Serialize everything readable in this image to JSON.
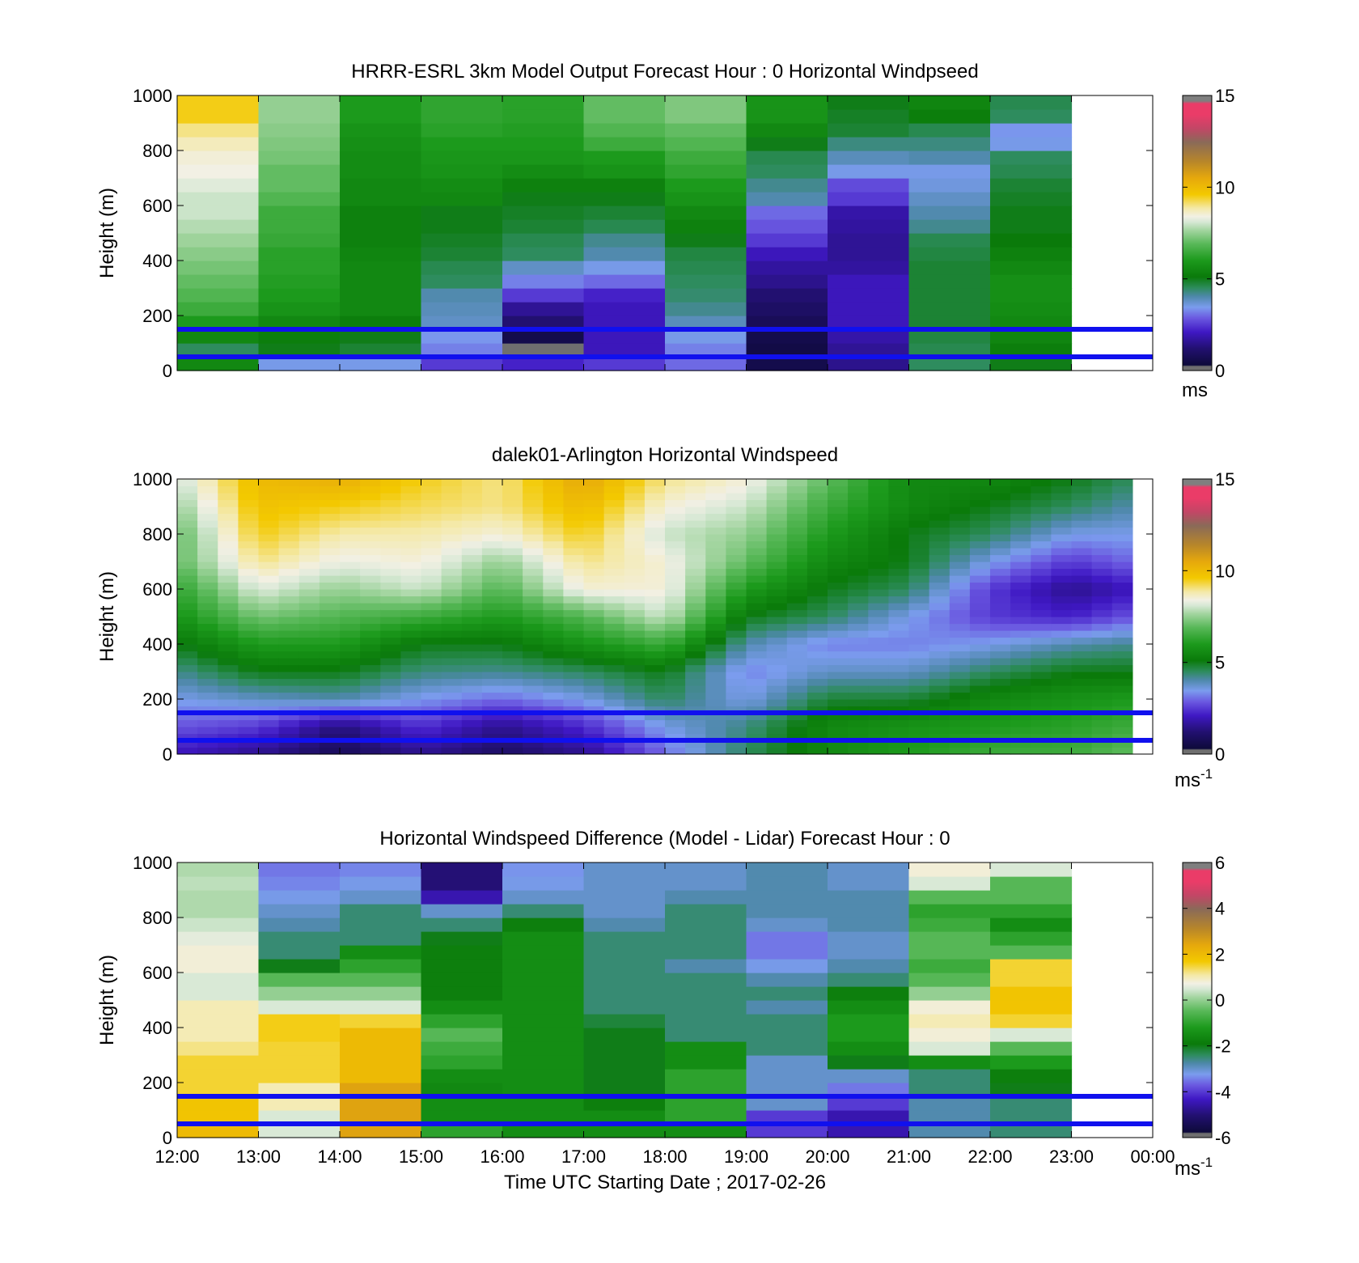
{
  "figure": {
    "xlabel": "Time UTC  Starting Date ; 2017-02-26",
    "time_ticks": [
      "12:00",
      "13:00",
      "14:00",
      "15:00",
      "16:00",
      "17:00",
      "18:00",
      "19:00",
      "20:00",
      "21:00",
      "22:00",
      "23:00",
      "00:00"
    ],
    "reference_lines": {
      "heights_m": [
        150,
        50
      ],
      "color": "#1010ee"
    }
  },
  "colors": {
    "speed_scale": [
      [
        0.0,
        "#6f6f6f"
      ],
      [
        0.015,
        "#6f6f6f"
      ],
      [
        0.02,
        "#0d0a3a"
      ],
      [
        0.08,
        "#221070"
      ],
      [
        0.14,
        "#3f18c4"
      ],
      [
        0.19,
        "#6a58e0"
      ],
      [
        0.23,
        "#7b9cee"
      ],
      [
        0.27,
        "#4d88a8"
      ],
      [
        0.3,
        "#2e8c5e"
      ],
      [
        0.34,
        "#0a7a0a"
      ],
      [
        0.4,
        "#1c9a1c"
      ],
      [
        0.46,
        "#58b858"
      ],
      [
        0.51,
        "#a3d5a0"
      ],
      [
        0.54,
        "#d7e8d5"
      ],
      [
        0.56,
        "#f2f0e4"
      ],
      [
        0.59,
        "#f4e9a8"
      ],
      [
        0.64,
        "#f3c900"
      ],
      [
        0.7,
        "#e6a80c"
      ],
      [
        0.76,
        "#b7862a"
      ],
      [
        0.83,
        "#8a6a58"
      ],
      [
        0.88,
        "#c24666"
      ],
      [
        0.93,
        "#ea3c68"
      ],
      [
        0.97,
        "#ea3c68"
      ],
      [
        0.98,
        "#7f7f7f"
      ],
      [
        1.0,
        "#7f7f7f"
      ]
    ]
  },
  "chart_data": [
    {
      "type": "heatmap",
      "title": "HRRR-ESRL 3km Model Output   Forecast Hour : 0 Horizontal Windpseed",
      "ylabel": "Height (m)",
      "xlim_hours": [
        12,
        24
      ],
      "ylim": [
        0,
        1000
      ],
      "y_ticks": [
        0,
        200,
        400,
        600,
        800,
        1000
      ],
      "colorbar": {
        "ticks": [
          0,
          5,
          10,
          15
        ],
        "range": [
          0,
          15
        ],
        "unit_label": "ms",
        "unit_sup": ""
      },
      "model_columns": [
        [
          5.5,
          4.5,
          5.5,
          6.0,
          6.5,
          6.8,
          7.0,
          7.2,
          7.4,
          7.6,
          7.8,
          8.0,
          8.0,
          8.2,
          8.4,
          8.5,
          8.7,
          9.0,
          9.5,
          9.5
        ],
        [
          3.5,
          5.0,
          5.2,
          5.5,
          5.8,
          6.0,
          6.1,
          6.2,
          6.2,
          6.4,
          6.5,
          6.5,
          6.8,
          7.0,
          7.0,
          7.2,
          7.3,
          7.4,
          7.5,
          7.5
        ],
        [
          3.5,
          4.8,
          5.0,
          5.2,
          5.5,
          5.5,
          5.5,
          5.5,
          5.4,
          5.3,
          5.3,
          5.3,
          5.5,
          5.5,
          5.6,
          5.6,
          5.7,
          5.8,
          6.0,
          6.0
        ],
        [
          2.5,
          3.2,
          3.4,
          3.8,
          3.9,
          4.0,
          4.5,
          4.6,
          4.8,
          4.9,
          5.0,
          5.0,
          5.5,
          5.6,
          5.8,
          5.9,
          6.0,
          6.2,
          6.3,
          6.3
        ],
        [
          2.2,
          0.2,
          0.6,
          1.2,
          1.6,
          2.5,
          3.2,
          3.8,
          4.5,
          4.6,
          4.8,
          4.9,
          5.0,
          5.3,
          5.6,
          5.9,
          6.0,
          6.1,
          6.2,
          6.2
        ],
        [
          2.5,
          2.0,
          2.0,
          2.0,
          2.0,
          2.2,
          3.0,
          3.5,
          4.0,
          4.2,
          4.6,
          4.8,
          5.0,
          5.3,
          5.8,
          6.0,
          6.5,
          6.8,
          7.0,
          7.0
        ],
        [
          3.0,
          3.2,
          3.5,
          3.9,
          4.2,
          4.4,
          4.5,
          4.6,
          4.7,
          5.0,
          5.3,
          5.5,
          5.8,
          6.0,
          6.3,
          6.5,
          6.8,
          7.0,
          7.3,
          7.3
        ],
        [
          0.6,
          0.5,
          0.6,
          0.8,
          1.0,
          1.2,
          1.5,
          1.7,
          2.0,
          2.5,
          2.8,
          3.0,
          4.0,
          4.2,
          4.5,
          4.6,
          5.0,
          5.5,
          5.8,
          5.8
        ],
        [
          1.5,
          1.6,
          1.8,
          2.0,
          2.0,
          2.0,
          2.0,
          1.7,
          1.6,
          1.6,
          1.7,
          1.8,
          2.5,
          2.7,
          3.5,
          3.9,
          4.3,
          4.8,
          4.9,
          5.0
        ],
        [
          4.5,
          4.6,
          4.7,
          4.8,
          4.8,
          4.8,
          4.8,
          4.8,
          4.7,
          4.6,
          4.2,
          4.0,
          3.8,
          3.6,
          3.5,
          4.0,
          4.3,
          4.6,
          5.2,
          5.4
        ],
        [
          5.0,
          5.2,
          5.4,
          5.5,
          5.6,
          5.7,
          5.7,
          5.5,
          5.3,
          5.1,
          5.0,
          5.0,
          4.9,
          4.8,
          4.6,
          4.5,
          3.5,
          3.4,
          4.5,
          4.6
        ]
      ]
    },
    {
      "type": "heatmap",
      "title": "dalek01-Arlington  Horizontal Windspeed",
      "ylabel": "Height (m)",
      "xlim_hours": [
        12,
        24
      ],
      "ylim": [
        0,
        1000
      ],
      "y_ticks": [
        0,
        200,
        400,
        600,
        800,
        1000
      ],
      "colorbar": {
        "ticks": [
          0,
          5,
          10,
          15
        ],
        "range": [
          0,
          15
        ],
        "unit_label": "ms",
        "unit_sup": "-1"
      },
      "lidar_profiles": {
        "start_hour": 12,
        "step_hours": 0.25,
        "n_columns": 47,
        "heights_m": [
          0,
          100,
          200,
          300,
          400,
          500,
          600,
          700,
          800,
          900,
          1000
        ],
        "waypoints": [
          {
            "hour": 12.0,
            "profile": [
              2.0,
              2.8,
              3.5,
              4.2,
              5.0,
              5.8,
              6.3,
              7.0,
              7.0,
              7.5,
              8.0
            ]
          },
          {
            "hour": 13.0,
            "profile": [
              1.5,
              2.5,
              3.8,
              5.0,
              6.0,
              7.2,
              8.2,
              9.0,
              9.5,
              9.8,
              10.0
            ]
          },
          {
            "hour": 14.0,
            "profile": [
              0.8,
              1.3,
              4.0,
              5.0,
              6.0,
              6.8,
              7.5,
              8.3,
              8.8,
              9.5,
              10.3
            ]
          },
          {
            "hour": 15.0,
            "profile": [
              1.5,
              2.4,
              3.4,
              4.3,
              5.0,
              6.5,
              8.0,
              8.5,
              8.8,
              9.2,
              9.5
            ]
          },
          {
            "hour": 16.0,
            "profile": [
              1.0,
              1.5,
              3.0,
              4.2,
              5.0,
              6.0,
              6.8,
              7.5,
              8.5,
              9.0,
              9.0
            ]
          },
          {
            "hour": 17.0,
            "profile": [
              1.5,
              2.3,
              3.5,
              4.5,
              5.8,
              6.8,
              8.5,
              9.0,
              9.5,
              10.0,
              10.5
            ]
          },
          {
            "hour": 18.0,
            "profile": [
              3.0,
              3.5,
              4.5,
              5.0,
              6.5,
              8.0,
              8.5,
              8.5,
              8.0,
              8.5,
              9.0
            ]
          },
          {
            "hour": 19.0,
            "profile": [
              4.5,
              4.3,
              3.5,
              3.2,
              4.0,
              5.0,
              6.0,
              7.0,
              7.5,
              8.0,
              8.5
            ]
          },
          {
            "hour": 20.0,
            "profile": [
              5.5,
              5.5,
              4.8,
              3.8,
              3.2,
              4.5,
              5.0,
              5.5,
              6.0,
              6.5,
              7.0
            ]
          },
          {
            "hour": 21.0,
            "profile": [
              6.0,
              5.8,
              4.8,
              3.8,
              3.2,
              3.5,
              4.5,
              5.0,
              5.0,
              5.5,
              5.5
            ]
          },
          {
            "hour": 22.0,
            "profile": [
              6.5,
              6.0,
              5.5,
              4.5,
              3.5,
              2.5,
              2.5,
              3.5,
              4.5,
              5.0,
              5.5
            ]
          },
          {
            "hour": 23.0,
            "profile": [
              6.5,
              6.2,
              5.8,
              5.0,
              4.0,
              2.2,
              1.5,
              2.5,
              3.5,
              4.5,
              5.0
            ]
          },
          {
            "hour": 23.75,
            "profile": [
              7.0,
              6.5,
              6.0,
              5.0,
              4.2,
              2.8,
              2.0,
              3.0,
              3.5,
              4.0,
              4.5
            ]
          }
        ]
      }
    },
    {
      "type": "heatmap",
      "title": "Horizontal Windspeed Difference (Model - Lidar) Forecast Hour : 0",
      "ylabel": "Height (m)",
      "xlim_hours": [
        12,
        24
      ],
      "ylim": [
        0,
        1000
      ],
      "y_ticks": [
        0,
        200,
        400,
        600,
        800,
        1000
      ],
      "colorbar": {
        "ticks": [
          -6,
          -4,
          -2,
          0,
          2,
          4,
          6
        ],
        "range": [
          -6,
          6
        ],
        "unit_label": "ms",
        "unit_sup": "-1"
      },
      "difference_columns": [
        [
          2.0,
          1.8,
          1.8,
          1.5,
          1.5,
          1.5,
          1.2,
          1.0,
          1.0,
          1.0,
          0.5,
          0.5,
          0.8,
          0.8,
          0.6,
          0.4,
          0.2,
          0.2,
          0.3,
          0.2
        ],
        [
          0.5,
          0.5,
          1.0,
          1.0,
          1.5,
          1.5,
          1.5,
          1.6,
          1.6,
          0.5,
          0.0,
          -0.5,
          -2.0,
          -2.5,
          -2.5,
          -2.8,
          -3.0,
          -3.2,
          -3.4,
          -3.5
        ],
        [
          2.5,
          2.5,
          2.5,
          2.5,
          2.0,
          2.0,
          2.0,
          2.0,
          1.5,
          0.5,
          0.0,
          -0.5,
          -1.0,
          -1.5,
          -2.5,
          -2.5,
          -2.5,
          -3.0,
          -3.2,
          -3.4
        ],
        [
          -1.0,
          -1.5,
          -1.5,
          -1.6,
          -1.5,
          -1.0,
          -0.8,
          -0.5,
          -1.0,
          -1.5,
          -1.8,
          -1.8,
          -1.8,
          -1.8,
          -2.0,
          -2.5,
          -3.0,
          -4.5,
          -5.0,
          -5.0
        ],
        [
          -1.5,
          -1.5,
          -1.5,
          -1.5,
          -1.5,
          -1.5,
          -1.5,
          -1.5,
          -1.5,
          -1.5,
          -1.5,
          -1.5,
          -1.5,
          -1.5,
          -1.5,
          -1.8,
          -2.5,
          -3.0,
          -3.2,
          -3.3
        ],
        [
          -1.5,
          -1.5,
          -1.8,
          -2.0,
          -2.0,
          -2.0,
          -2.0,
          -2.0,
          -2.2,
          -2.5,
          -2.5,
          -2.5,
          -2.5,
          -2.5,
          -2.5,
          -2.8,
          -3.0,
          -3.0,
          -3.0,
          -3.0
        ],
        [
          -1.5,
          -1.0,
          -1.0,
          -1.0,
          -1.0,
          -1.5,
          -1.5,
          -2.5,
          -2.5,
          -2.5,
          -2.5,
          -2.5,
          -2.8,
          -2.5,
          -2.5,
          -2.5,
          -2.5,
          -2.8,
          -3.0,
          -3.0
        ],
        [
          -4.0,
          -4.0,
          -3.0,
          -3.0,
          -3.0,
          -3.0,
          -2.5,
          -2.5,
          -2.5,
          -2.8,
          -2.5,
          -2.8,
          -3.2,
          -3.5,
          -3.5,
          -3.0,
          -2.8,
          -2.8,
          -2.8,
          -2.8
        ],
        [
          -4.5,
          -4.5,
          -4.0,
          -3.5,
          -3.0,
          -2.0,
          -1.5,
          -1.2,
          -1.2,
          -1.5,
          -1.8,
          -2.5,
          -2.8,
          -3.0,
          -3.0,
          -2.8,
          -2.8,
          -2.8,
          -3.0,
          -3.0
        ],
        [
          -2.8,
          -2.8,
          -2.8,
          -2.5,
          -2.5,
          -1.5,
          0.5,
          0.8,
          1.0,
          0.8,
          0.0,
          -0.5,
          -0.8,
          -0.5,
          -0.5,
          -0.8,
          -1.0,
          -0.5,
          0.5,
          0.8
        ],
        [
          -2.5,
          -2.5,
          -2.5,
          -2.0,
          -1.8,
          -1.2,
          -0.5,
          0.5,
          1.5,
          1.8,
          1.8,
          1.5,
          1.5,
          -0.5,
          -1.0,
          -1.5,
          -1.0,
          -0.5,
          -0.5,
          0.5
        ]
      ]
    }
  ]
}
